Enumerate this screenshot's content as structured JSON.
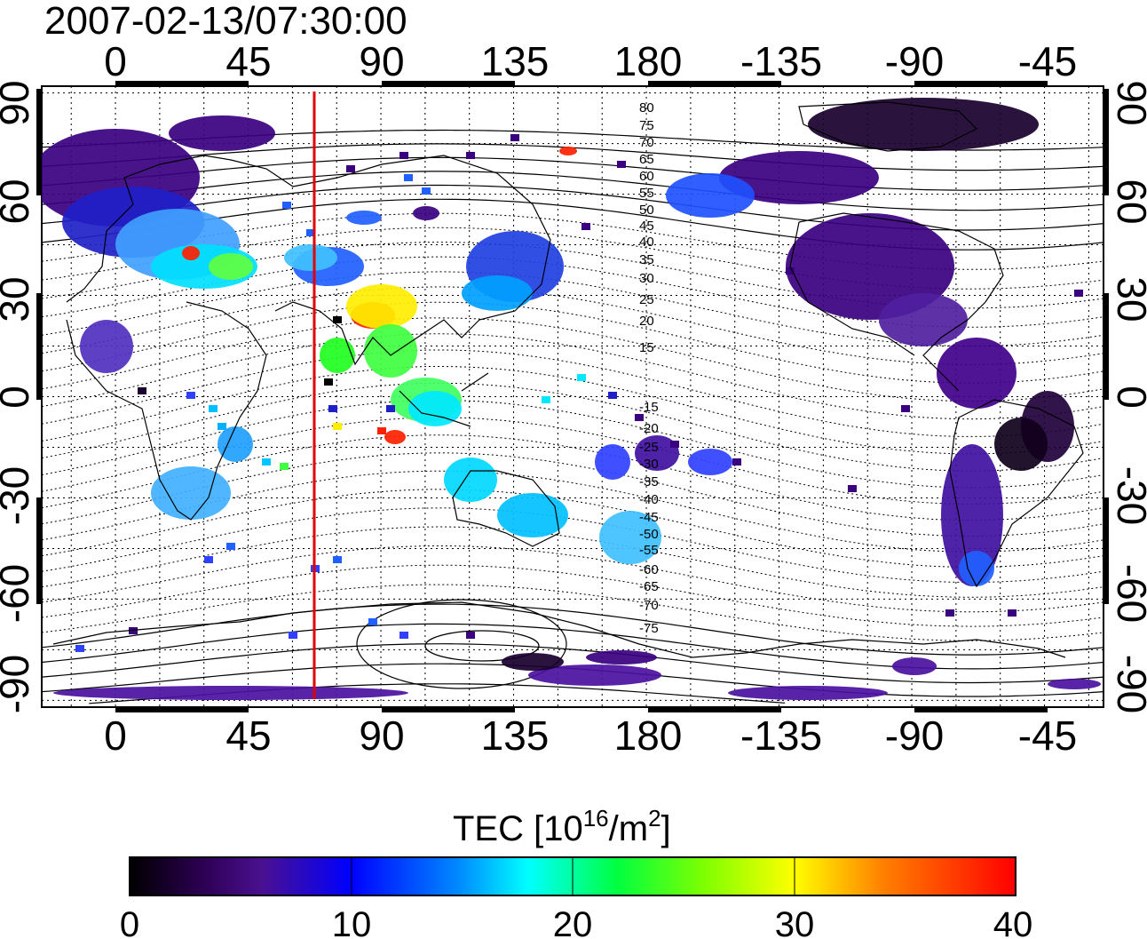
{
  "title": "2007-02-13/07:30:00",
  "map": {
    "top_lon_ticks": [
      "0",
      "45",
      "90",
      "135",
      "180",
      "-135",
      "-90",
      "-45"
    ],
    "bottom_lon_ticks": [
      "0",
      "45",
      "90",
      "135",
      "180",
      "-135",
      "-90",
      "-45"
    ],
    "left_lat_ticks": [
      "90",
      "60",
      "30",
      "0",
      "-30",
      "-60",
      "-90"
    ],
    "right_lat_ticks": [
      "90",
      "60",
      "30",
      "0",
      "-30",
      "-60",
      "-90"
    ],
    "contour_labels": [
      "80",
      "75",
      "70",
      "65",
      "60",
      "55",
      "50",
      "45",
      "40",
      "35",
      "30",
      "25",
      "20",
      "15",
      "-15",
      "-20",
      "-25",
      "-30",
      "-35",
      "-40",
      "-45",
      "-50",
      "-55",
      "-60",
      "-65",
      "-70",
      "-75"
    ],
    "marker_line_color": "#e00000",
    "lon_range": [
      -25,
      335
    ],
    "lat_range": [
      -92,
      92
    ]
  },
  "colorbar": {
    "title_main": "TEC  [10",
    "title_sup1": "16",
    "title_mid": "/m",
    "title_sup2": "2",
    "title_end": "]",
    "tick_labels": [
      "0",
      "10",
      "20",
      "30",
      "40"
    ],
    "range": [
      0,
      40
    ],
    "colors": [
      "#000000",
      "#3a0070",
      "#5a1aa0",
      "#0000ff",
      "#0088ff",
      "#00ffff",
      "#00ff40",
      "#80ff00",
      "#ffff00",
      "#ff8000",
      "#ff0000"
    ]
  }
}
